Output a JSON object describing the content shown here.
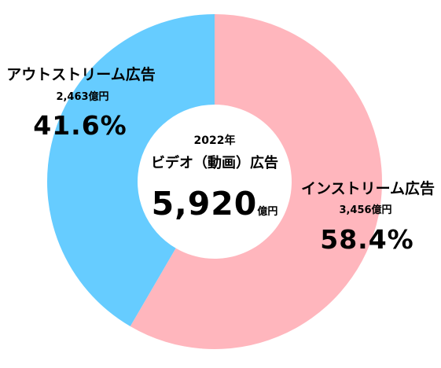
{
  "chart_data": {
    "type": "pie",
    "donut": true,
    "center": {
      "year": "2022年",
      "title": "ビデオ（動画）広告",
      "total": "5,920",
      "unit": "億円"
    },
    "slices": [
      {
        "name": "インストリーム広告",
        "amount": "3,456億円",
        "value": 58.4,
        "percent_label": "58.4%",
        "color": "#ffb6bd"
      },
      {
        "name": "アウトストリーム広告",
        "amount": "2,463億円",
        "value": 41.6,
        "percent_label": "41.6%",
        "color": "#66ccff"
      }
    ]
  }
}
